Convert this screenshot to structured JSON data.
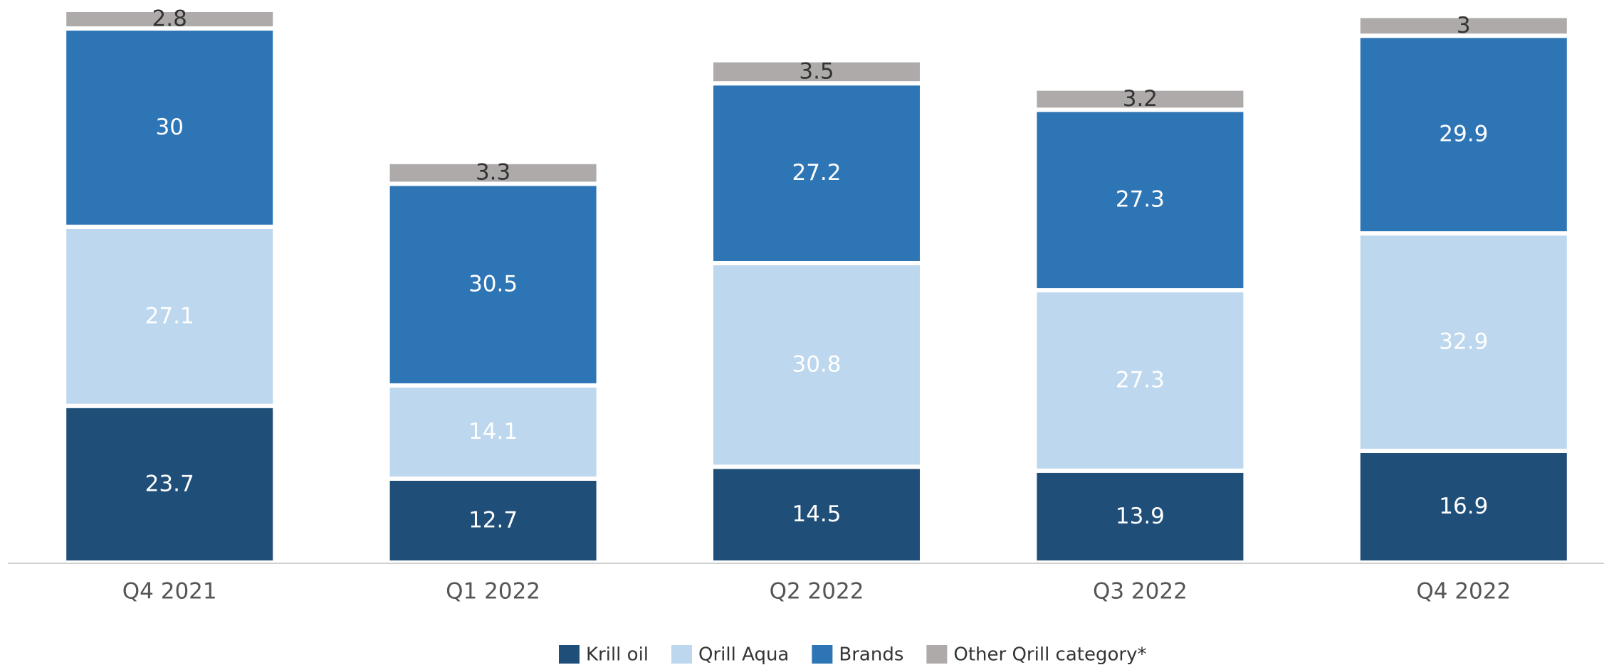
{
  "chart_data": {
    "type": "stacked_bar",
    "categories": [
      "Q4 2021",
      "Q1 2022",
      "Q2 2022",
      "Q3 2022",
      "Q4 2022"
    ],
    "series": [
      {
        "name": "Krill oil",
        "color": "#1f4e79",
        "values": [
          23.7,
          12.7,
          14.5,
          13.9,
          16.9
        ]
      },
      {
        "name": "Qrill Aqua",
        "color": "#bdd7ee",
        "values": [
          27.1,
          14.1,
          30.8,
          27.3,
          32.9
        ]
      },
      {
        "name": "Brands",
        "color": "#2e75b6",
        "values": [
          30.0,
          30.5,
          27.2,
          27.3,
          29.9
        ]
      },
      {
        "name": "Other Qrill category*",
        "color": "#aeaaaa",
        "values": [
          2.8,
          3.3,
          3.5,
          3.2,
          3.0
        ]
      }
    ],
    "ylim": [
      0,
      85
    ],
    "legend": "bottom"
  }
}
